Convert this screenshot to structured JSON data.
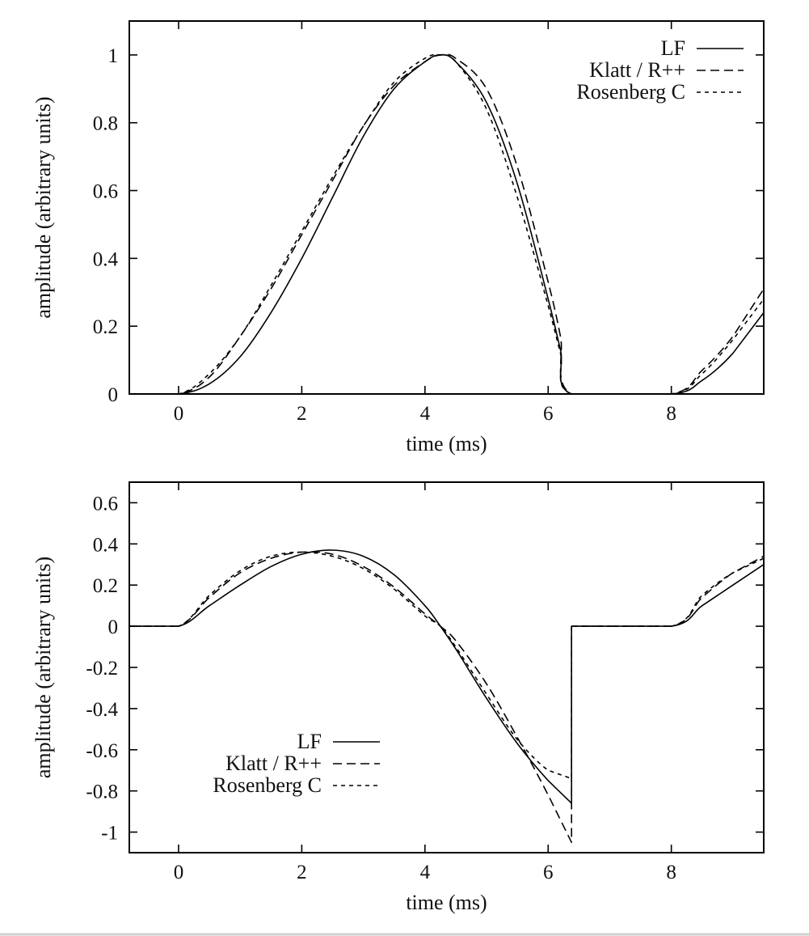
{
  "chart_data": [
    {
      "type": "line",
      "title": "",
      "xlabel": "time (ms)",
      "ylabel": "amplitude (arbitrary units)",
      "xlim": [
        -0.8,
        9.5
      ],
      "ylim": [
        0,
        1.1
      ],
      "xticks": [
        0,
        2,
        4,
        6,
        8
      ],
      "xtick_labels": [
        "0",
        "2",
        "4",
        "6",
        "8"
      ],
      "yticks": [
        0,
        0.2,
        0.4,
        0.6,
        0.8,
        1
      ],
      "ytick_labels": [
        "0",
        "0.2",
        "0.4",
        "0.6",
        "0.8",
        "1"
      ],
      "grid": false,
      "legend_position": "top-right",
      "series": [
        {
          "name": "LF",
          "style": "solid",
          "x": [
            -0.8,
            0,
            0.5,
            1,
            1.5,
            2,
            2.5,
            3,
            3.5,
            4,
            4.25,
            4.5,
            5,
            5.5,
            6,
            6.2,
            6.38,
            8,
            8.5,
            9,
            9.5
          ],
          "y": [
            0,
            0,
            0.03,
            0.11,
            0.24,
            0.4,
            0.58,
            0.76,
            0.9,
            0.98,
            1.0,
            0.98,
            0.86,
            0.62,
            0.28,
            0.13,
            0,
            0,
            0.04,
            0.12,
            0.24
          ]
        },
        {
          "name": "Klatt / R++",
          "style": "dashed",
          "x": [
            -0.8,
            0,
            0.5,
            1,
            1.5,
            2,
            2.5,
            3,
            3.5,
            4,
            4.25,
            4.5,
            5,
            5.5,
            6,
            6.2,
            6.38,
            8,
            8.5,
            9,
            9.5
          ],
          "y": [
            0,
            0,
            0.05,
            0.17,
            0.31,
            0.47,
            0.63,
            0.79,
            0.91,
            0.98,
            1.0,
            0.99,
            0.9,
            0.67,
            0.33,
            0.17,
            0,
            0,
            0.07,
            0.17,
            0.31
          ]
        },
        {
          "name": "Rosenberg C",
          "style": "dotted",
          "x": [
            -0.8,
            0,
            0.5,
            1,
            1.5,
            2,
            2.5,
            3,
            3.5,
            4,
            4.25,
            4.5,
            5,
            5.5,
            6,
            6.2,
            6.38,
            8,
            8.5,
            9,
            9.5
          ],
          "y": [
            0,
            0,
            0.06,
            0.17,
            0.32,
            0.48,
            0.64,
            0.79,
            0.92,
            0.99,
            1.0,
            0.98,
            0.84,
            0.58,
            0.26,
            0.12,
            0,
            0,
            0.06,
            0.16,
            0.28
          ]
        }
      ]
    },
    {
      "type": "line",
      "title": "",
      "xlabel": "time (ms)",
      "ylabel": "amplitude (arbitrary units)",
      "xlim": [
        -0.8,
        9.5
      ],
      "ylim": [
        -1.1,
        0.7
      ],
      "xticks": [
        0,
        2,
        4,
        6,
        8
      ],
      "xtick_labels": [
        "0",
        "2",
        "4",
        "6",
        "8"
      ],
      "yticks": [
        -1,
        -0.8,
        -0.6,
        -0.4,
        -0.2,
        0,
        0.2,
        0.4,
        0.6
      ],
      "ytick_labels": [
        "-1",
        "-0.8",
        "-0.6",
        "-0.4",
        "-0.2",
        "0",
        "0.2",
        "0.4",
        "0.6"
      ],
      "grid": false,
      "legend_position": "bottom-left",
      "series": [
        {
          "name": "LF",
          "style": "solid",
          "x": [
            -0.8,
            0,
            0.5,
            1,
            1.5,
            2,
            2.5,
            3,
            3.5,
            4,
            4.25,
            4.5,
            5,
            5.5,
            6,
            6.38,
            6.38,
            8,
            8.5,
            9,
            9.5
          ],
          "y": [
            0,
            0,
            0.1,
            0.2,
            0.29,
            0.35,
            0.37,
            0.34,
            0.25,
            0.1,
            0,
            -0.11,
            -0.35,
            -0.57,
            -0.75,
            -0.86,
            0,
            0,
            0.1,
            0.2,
            0.3
          ]
        },
        {
          "name": "Klatt / R++",
          "style": "dashed",
          "x": [
            -0.8,
            0,
            0.5,
            1,
            1.5,
            2,
            2.5,
            3,
            3.5,
            4,
            4.25,
            4.5,
            5,
            5.5,
            6,
            6.38,
            6.38,
            8,
            8.5,
            9,
            9.5
          ],
          "y": [
            0,
            0,
            0.14,
            0.26,
            0.33,
            0.36,
            0.35,
            0.29,
            0.19,
            0.06,
            0,
            -0.07,
            -0.28,
            -0.54,
            -0.82,
            -1.05,
            0,
            0,
            0.14,
            0.26,
            0.34
          ]
        },
        {
          "name": "Rosenberg C",
          "style": "dotted",
          "x": [
            -0.8,
            0,
            0.5,
            1,
            1.5,
            2,
            2.5,
            3,
            3.5,
            4,
            4.25,
            4.5,
            5,
            5.5,
            6,
            6.38,
            6.38,
            8,
            8.5,
            9,
            9.5
          ],
          "y": [
            0,
            0,
            0.15,
            0.27,
            0.34,
            0.36,
            0.34,
            0.28,
            0.18,
            0.05,
            0,
            -0.1,
            -0.33,
            -0.55,
            -0.7,
            -0.74,
            0,
            0,
            0.15,
            0.26,
            0.33
          ]
        }
      ]
    }
  ]
}
